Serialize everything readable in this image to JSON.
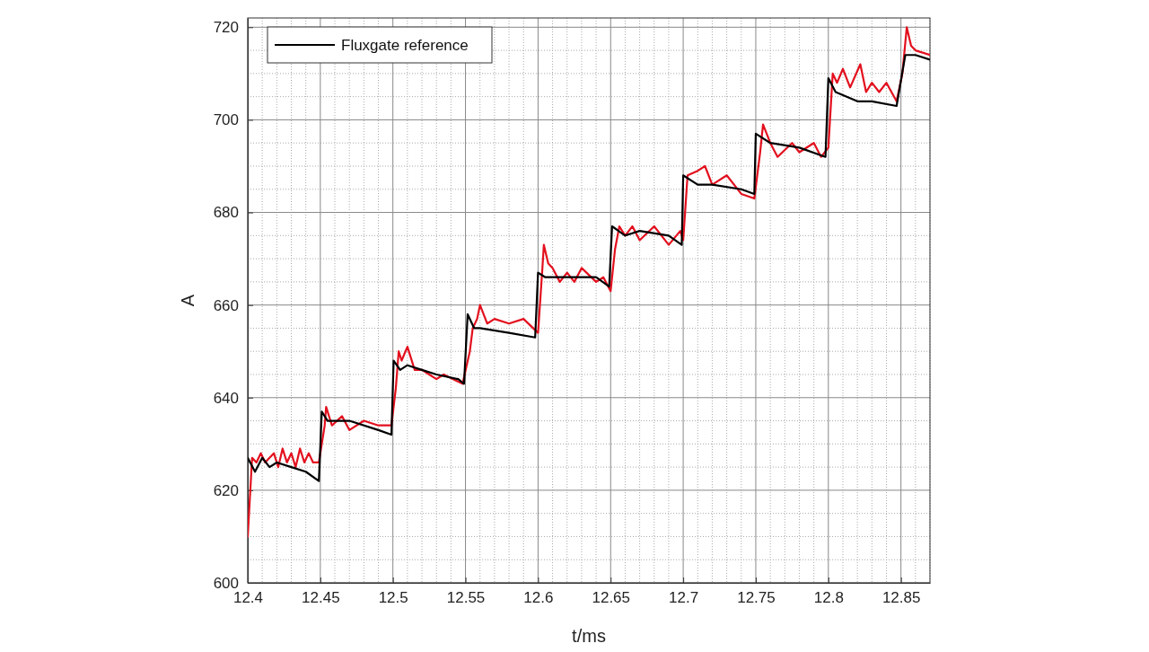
{
  "chart_data": {
    "type": "line",
    "xlabel": "t/ms",
    "ylabel": "A",
    "xlim": [
      12.4,
      12.87
    ],
    "ylim": [
      600,
      722
    ],
    "xticks": [
      12.4,
      12.45,
      12.5,
      12.55,
      12.6,
      12.65,
      12.7,
      12.75,
      12.8,
      12.85
    ],
    "yticks": [
      600,
      620,
      640,
      660,
      680,
      700,
      720
    ],
    "grid": true,
    "legend": "top left",
    "line_style": "solid",
    "series": [
      {
        "color": "#e3101e",
        "x": [
          12.4,
          12.403,
          12.406,
          12.409,
          12.412,
          12.415,
          12.418,
          12.421,
          12.424,
          12.427,
          12.43,
          12.433,
          12.436,
          12.439,
          12.442,
          12.445,
          12.449,
          12.453,
          12.454,
          12.458,
          12.465,
          12.47,
          12.48,
          12.49,
          12.499,
          12.502,
          12.504,
          12.506,
          12.51,
          12.515,
          12.52,
          12.525,
          12.53,
          12.535,
          12.548,
          12.553,
          12.555,
          12.558,
          12.56,
          12.565,
          12.57,
          12.58,
          12.59,
          12.6,
          12.603,
          12.604,
          12.607,
          12.61,
          12.615,
          12.62,
          12.625,
          12.63,
          12.64,
          12.645,
          12.65,
          12.653,
          12.656,
          12.66,
          12.665,
          12.67,
          12.68,
          12.69,
          12.698,
          12.7,
          12.703,
          12.71,
          12.715,
          12.72,
          12.73,
          12.74,
          12.749,
          12.753,
          12.755,
          12.76,
          12.765,
          12.775,
          12.78,
          12.79,
          12.795,
          12.8,
          12.803,
          12.806,
          12.81,
          12.815,
          12.822,
          12.826,
          12.83,
          12.835,
          12.84,
          12.847,
          12.851,
          12.854,
          12.857,
          12.86,
          12.87
        ],
        "values": [
          610,
          627,
          626,
          628,
          626,
          627,
          628,
          625,
          629,
          626,
          628,
          625,
          629,
          626,
          628,
          626,
          626,
          634,
          638,
          634,
          636,
          633,
          635,
          634,
          634,
          642,
          650,
          648,
          651,
          646,
          646,
          645,
          644,
          645,
          643,
          650,
          655,
          657,
          660,
          656,
          657,
          656,
          657,
          654,
          668,
          673,
          669,
          668,
          665,
          667,
          665,
          668,
          665,
          666,
          663,
          672,
          677,
          675,
          677,
          674,
          677,
          673,
          676,
          674,
          688,
          689,
          690,
          686,
          688,
          684,
          683,
          693,
          699,
          695,
          692,
          695,
          693,
          695,
          692,
          694,
          710,
          708,
          711,
          707,
          712,
          706,
          708,
          706,
          708,
          704,
          710,
          720,
          716,
          715,
          714
        ]
      },
      {
        "name": "Fluxgate reference",
        "color": "#000000",
        "x": [
          12.4,
          12.405,
          12.41,
          12.415,
          12.42,
          12.43,
          12.44,
          12.449,
          12.451,
          12.455,
          12.47,
          12.49,
          12.499,
          12.5005,
          12.505,
          12.51,
          12.52,
          12.53,
          12.545,
          12.549,
          12.5515,
          12.556,
          12.56,
          12.58,
          12.598,
          12.6,
          12.605,
          12.62,
          12.64,
          12.649,
          12.651,
          12.66,
          12.67,
          12.69,
          12.699,
          12.7,
          12.71,
          12.72,
          12.74,
          12.749,
          12.75,
          12.76,
          12.78,
          12.798,
          12.8,
          12.805,
          12.82,
          12.83,
          12.847,
          12.853,
          12.86,
          12.87
        ],
        "values": [
          627,
          624,
          627,
          625,
          626,
          625,
          624,
          622,
          637,
          635,
          635,
          633,
          632,
          648,
          646,
          647,
          646,
          645,
          644,
          643,
          658,
          655,
          655,
          654,
          653,
          667,
          666,
          666,
          666,
          664,
          677,
          675,
          676,
          675,
          673,
          688,
          686,
          686,
          685,
          684,
          697,
          695,
          694,
          692,
          709,
          706,
          704,
          704,
          703,
          714,
          714,
          713
        ]
      }
    ]
  }
}
